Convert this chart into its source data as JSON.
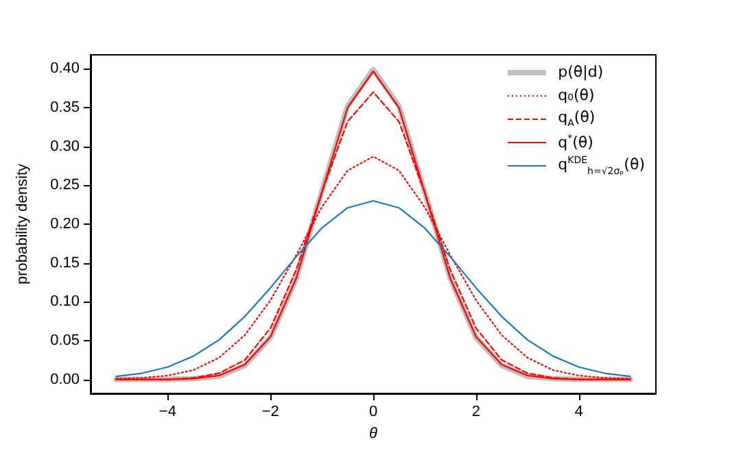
{
  "chart_data": {
    "type": "line",
    "xlabel": "θ",
    "ylabel": "probability density",
    "x": [
      -5,
      -4.5,
      -4,
      -3.5,
      -3,
      -2.5,
      -2,
      -1.5,
      -1,
      -0.5,
      0,
      0.5,
      1,
      1.5,
      2,
      2.5,
      3,
      3.5,
      4,
      4.5,
      5
    ],
    "series": [
      {
        "name": "p(θ|d)",
        "color": "#c0c0c0",
        "line_style": "solid",
        "values": [
          0,
          0,
          0,
          0.001,
          0.004,
          0.018,
          0.054,
          0.13,
          0.242,
          0.352,
          0.399,
          0.352,
          0.242,
          0.13,
          0.054,
          0.018,
          0.004,
          0.001,
          0,
          0,
          0
        ]
      },
      {
        "name": "q₀(θ)",
        "color": "#ff0000",
        "line_style": "dotted",
        "values": [
          0.001,
          0.002,
          0.005,
          0.012,
          0.028,
          0.057,
          0.102,
          0.16,
          0.222,
          0.269,
          0.287,
          0.269,
          0.222,
          0.16,
          0.102,
          0.057,
          0.028,
          0.012,
          0.005,
          0.002,
          0.001
        ]
      },
      {
        "name": "q$_{A}$(θ)",
        "color": "#ff0000",
        "line_style": "dashed",
        "values": [
          0,
          0,
          0,
          0.002,
          0.008,
          0.025,
          0.066,
          0.141,
          0.241,
          0.332,
          0.37,
          0.332,
          0.241,
          0.141,
          0.066,
          0.025,
          0.008,
          0.002,
          0,
          0,
          0
        ]
      },
      {
        "name": "q$^{*}$(θ)",
        "color": "#ff0000",
        "line_style": "solid",
        "values": [
          0,
          0,
          0,
          0.001,
          0.005,
          0.019,
          0.055,
          0.13,
          0.241,
          0.35,
          0.397,
          0.35,
          0.241,
          0.13,
          0.055,
          0.019,
          0.005,
          0.001,
          0,
          0,
          0
        ]
      },
      {
        "name": "q$^{KDE}$$_{h=√2σₚ}$(θ)",
        "color": "#1f77b4",
        "line_style": "solid",
        "values": [
          0.004,
          0.008,
          0.016,
          0.03,
          0.051,
          0.081,
          0.118,
          0.158,
          0.195,
          0.221,
          0.23,
          0.221,
          0.195,
          0.158,
          0.118,
          0.081,
          0.051,
          0.03,
          0.016,
          0.008,
          0.004
        ]
      }
    ],
    "xlim": [
      -5.5,
      5.5
    ],
    "ylim": [
      -0.018,
      0.418
    ],
    "xticks": [
      {
        "value": -4,
        "label": "−4"
      },
      {
        "value": -2,
        "label": "−2"
      },
      0,
      2,
      4
    ],
    "yticks": [
      {
        "value": 0,
        "label": "0.00"
      },
      {
        "value": 0.05,
        "label": "0.05"
      },
      {
        "value": 0.1,
        "label": "0.10"
      },
      {
        "value": 0.15,
        "label": "0.15"
      },
      {
        "value": 0.2,
        "label": "0.20"
      },
      {
        "value": 0.25,
        "label": "0.25"
      },
      {
        "value": 0.3,
        "label": "0.30"
      },
      {
        "value": 0.35,
        "label": "0.35"
      },
      {
        "value": 0.4,
        "label": "0.40"
      }
    ],
    "legend": "top right",
    "grid": false,
    "marker": "none"
  }
}
